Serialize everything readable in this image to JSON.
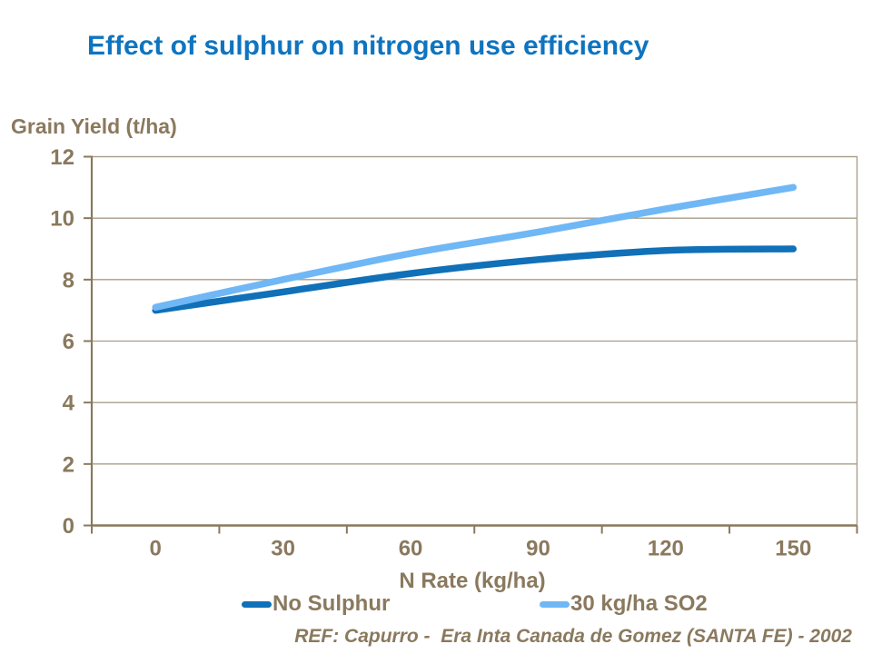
{
  "title": "Effect of sulphur on nitrogen use efficiency",
  "footer": {
    "text": "REF: Capurro -  Era Inta Canada de Gomez (SANTA FE) - 2002"
  },
  "colors": {
    "title_blue": "#0e74c0",
    "axis_text_brown": "#8a795e",
    "gridline_tan": "#a89d8a",
    "axis_line_brown": "#8a795e",
    "series_dark_blue": "#1070b8",
    "series_light_blue": "#70b7f5",
    "background": "#ffffff"
  },
  "chart_data": {
    "type": "line",
    "title": "Effect of sulphur on nitrogen use efficiency",
    "xlabel": "N Rate (kg/ha)",
    "ylabel": "Grain Yield (t/ha)",
    "x": [
      0,
      30,
      60,
      90,
      120,
      150
    ],
    "xtick_labels": [
      "0",
      "30",
      "60",
      "90",
      "120",
      "150"
    ],
    "yticks": [
      0,
      2,
      4,
      6,
      8,
      10,
      12
    ],
    "ylim": [
      0,
      12
    ],
    "grid": true,
    "legend_position": "bottom",
    "series": [
      {
        "name": "No Sulphur",
        "color": "#1070b8",
        "values": [
          7.0,
          7.6,
          8.2,
          8.65,
          8.95,
          9.0
        ]
      },
      {
        "name": "30 kg/ha SO2",
        "color": "#70b7f5",
        "values": [
          7.1,
          8.0,
          8.85,
          9.55,
          10.3,
          11.0
        ]
      }
    ]
  }
}
